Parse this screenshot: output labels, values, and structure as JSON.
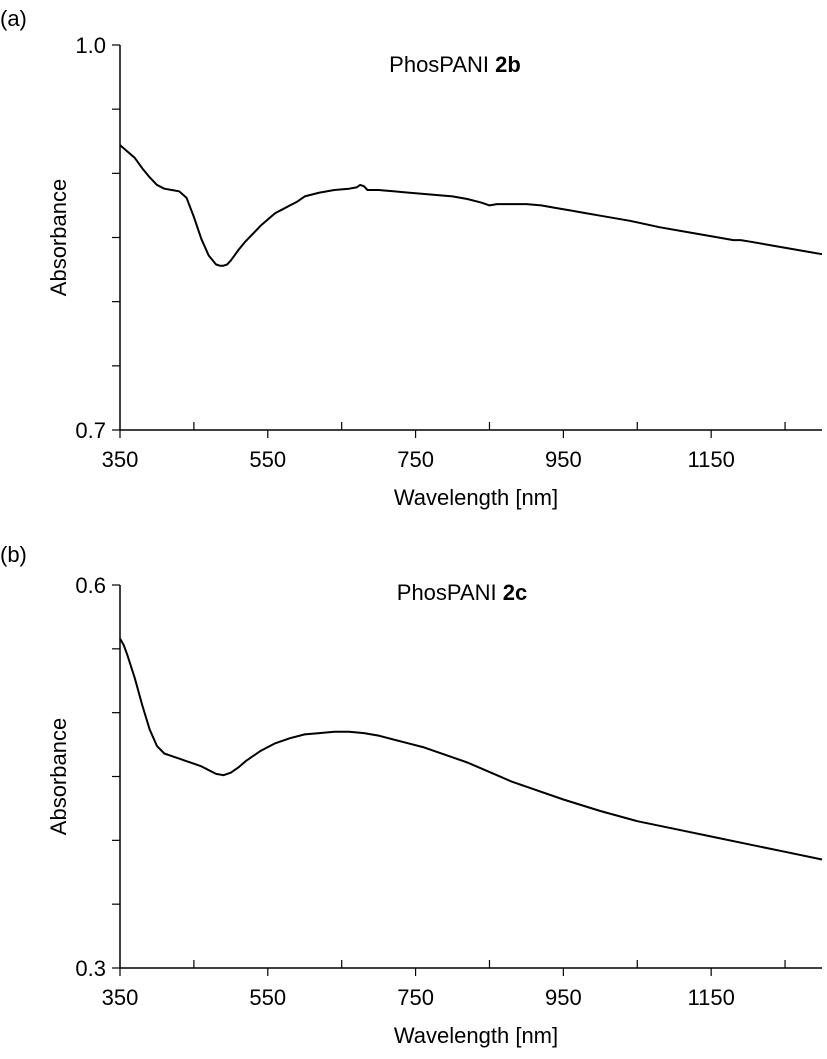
{
  "chart_data": [
    {
      "type": "line",
      "panel_label": "(a)",
      "title_text": "PhosPANI ",
      "title_bold": "2b",
      "xlabel": "Wavelength [nm]",
      "ylabel": "Absorbance",
      "xlim": [
        350,
        1300
      ],
      "ylim": [
        0.7,
        1.0
      ],
      "x_tick_labels": [
        "350",
        "550",
        "750",
        "950",
        "1150"
      ],
      "x_tick_values": [
        350,
        550,
        750,
        950,
        1150
      ],
      "x_minor_ticks": [
        450,
        650,
        850,
        1050,
        1250
      ],
      "y_tick_labels": [
        "1.0",
        "0.7"
      ],
      "y_tick_values": [
        1.0,
        0.7
      ],
      "y_minor_ticks": [
        0.95,
        0.9,
        0.85,
        0.8,
        0.75
      ],
      "series": [
        {
          "x": [
            350,
            360,
            370,
            380,
            390,
            400,
            410,
            420,
            430,
            440,
            450,
            460,
            470,
            480,
            485,
            490,
            495,
            500,
            510,
            520,
            530,
            540,
            550,
            560,
            570,
            580,
            590,
            600,
            620,
            640,
            660,
            670,
            675,
            680,
            685,
            690,
            700,
            720,
            740,
            760,
            780,
            800,
            820,
            840,
            850,
            860,
            880,
            900,
            920,
            940,
            960,
            980,
            1000,
            1040,
            1080,
            1120,
            1160,
            1180,
            1190,
            1200,
            1240,
            1280,
            1300
          ],
          "y": [
            0.922,
            0.917,
            0.912,
            0.904,
            0.897,
            0.891,
            0.888,
            0.887,
            0.886,
            0.881,
            0.866,
            0.849,
            0.836,
            0.829,
            0.828,
            0.828,
            0.829,
            0.832,
            0.84,
            0.847,
            0.853,
            0.859,
            0.864,
            0.869,
            0.872,
            0.875,
            0.878,
            0.882,
            0.885,
            0.887,
            0.888,
            0.889,
            0.891,
            0.89,
            0.887,
            0.887,
            0.887,
            0.886,
            0.885,
            0.884,
            0.883,
            0.882,
            0.88,
            0.877,
            0.875,
            0.876,
            0.876,
            0.876,
            0.875,
            0.873,
            0.871,
            0.869,
            0.867,
            0.863,
            0.858,
            0.854,
            0.85,
            0.848,
            0.848,
            0.847,
            0.843,
            0.839,
            0.837
          ]
        }
      ]
    },
    {
      "type": "line",
      "panel_label": "(b)",
      "title_text": "PhosPANI ",
      "title_bold": "2c",
      "xlabel": "Wavelength [nm]",
      "ylabel": "Absorbance",
      "xlim": [
        350,
        1300
      ],
      "ylim": [
        0.3,
        0.6
      ],
      "x_tick_labels": [
        "350",
        "550",
        "750",
        "950",
        "1150"
      ],
      "x_tick_values": [
        350,
        550,
        750,
        950,
        1150
      ],
      "x_minor_ticks": [
        450,
        650,
        850,
        1050,
        1250
      ],
      "y_tick_labels": [
        "0.6",
        "0.3"
      ],
      "y_tick_values": [
        0.6,
        0.3
      ],
      "y_minor_ticks": [
        0.55,
        0.5,
        0.45,
        0.4,
        0.35
      ],
      "series": [
        {
          "x": [
            350,
            355,
            360,
            370,
            380,
            390,
            400,
            410,
            420,
            430,
            440,
            450,
            460,
            470,
            480,
            490,
            500,
            510,
            520,
            540,
            560,
            580,
            600,
            620,
            640,
            660,
            680,
            700,
            720,
            740,
            760,
            780,
            800,
            820,
            840,
            860,
            880,
            900,
            950,
            1000,
            1050,
            1100,
            1150,
            1200,
            1250,
            1300
          ],
          "y": [
            0.558,
            0.553,
            0.545,
            0.527,
            0.506,
            0.487,
            0.474,
            0.468,
            0.466,
            0.464,
            0.462,
            0.46,
            0.458,
            0.455,
            0.452,
            0.451,
            0.453,
            0.457,
            0.462,
            0.47,
            0.476,
            0.48,
            0.483,
            0.484,
            0.485,
            0.485,
            0.484,
            0.482,
            0.479,
            0.476,
            0.473,
            0.469,
            0.465,
            0.461,
            0.456,
            0.451,
            0.446,
            0.442,
            0.432,
            0.423,
            0.415,
            0.409,
            0.403,
            0.397,
            0.391,
            0.385
          ]
        }
      ]
    }
  ]
}
